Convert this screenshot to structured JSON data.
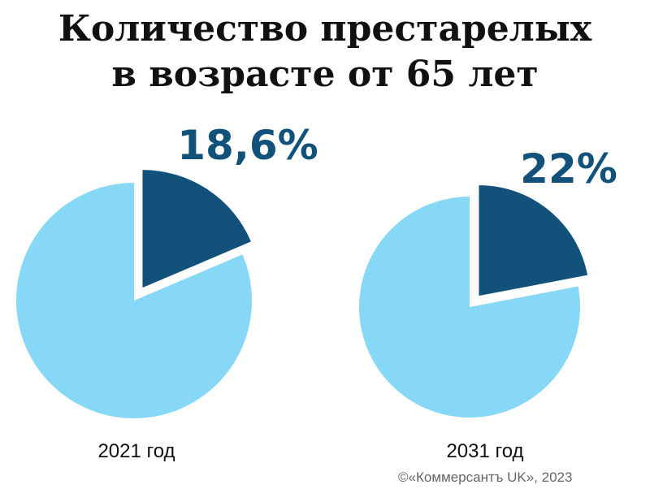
{
  "title": {
    "line1": "Количество престарелых",
    "line2": "в возрасте от 65 лет"
  },
  "chart_data": [
    {
      "type": "pie",
      "label": "2021 год",
      "slices": [
        {
          "label": "18,6%",
          "value": 18.6,
          "color": "#12527a",
          "exploded": true
        },
        {
          "value": 81.4,
          "color": "#87d8f7",
          "exploded": false
        }
      ]
    },
    {
      "type": "pie",
      "label": "2031 год",
      "slices": [
        {
          "label": "22%",
          "value": 22,
          "color": "#12527a",
          "exploded": true
        },
        {
          "value": 78,
          "color": "#87d8f7",
          "exploded": false
        }
      ]
    }
  ],
  "credit": "©«Коммерсантъ UK», 2023"
}
